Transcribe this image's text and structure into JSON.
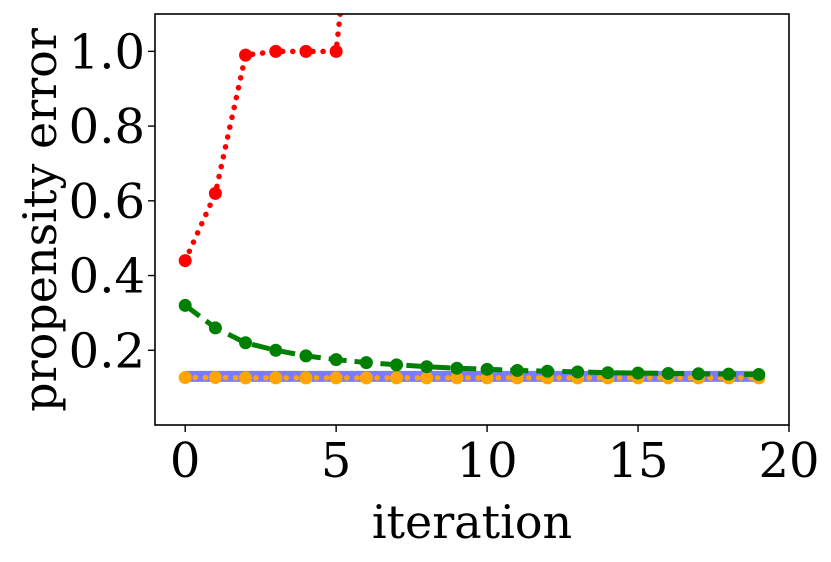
{
  "chart_data": {
    "type": "line",
    "title": "",
    "xlabel": "iteration",
    "ylabel": "propensity error",
    "xlim": [
      -1,
      20
    ],
    "ylim": [
      0.0,
      1.1
    ],
    "xticks": [
      0,
      5,
      10,
      15,
      20
    ],
    "xtick_labels": [
      "0",
      "5",
      "10",
      "15",
      "20"
    ],
    "yticks": [
      0.2,
      0.4,
      0.6,
      0.8,
      1.0
    ],
    "ytick_labels": [
      "0.2",
      "0.4",
      "0.6",
      "0.8",
      "1.0"
    ],
    "grid": false,
    "series": [
      {
        "name": "red-dotted",
        "color": "#ff0000",
        "line_style": "dotted",
        "marker": "circle",
        "x": [
          0,
          1,
          2,
          3,
          4,
          5
        ],
        "y": [
          0.44,
          0.62,
          0.99,
          1.0,
          1.0,
          1.0
        ],
        "continues_beyond": {
          "x": 5.2,
          "y": 1.15
        }
      },
      {
        "name": "green-dashed",
        "color": "#008000",
        "line_style": "dashed",
        "marker": "circle",
        "x": [
          0,
          1,
          2,
          3,
          4,
          5,
          6,
          7,
          8,
          9,
          10,
          11,
          12,
          13,
          14,
          15,
          16,
          17,
          18,
          19
        ],
        "y": [
          0.32,
          0.26,
          0.22,
          0.2,
          0.185,
          0.175,
          0.167,
          0.161,
          0.156,
          0.152,
          0.149,
          0.146,
          0.144,
          0.142,
          0.14,
          0.139,
          0.138,
          0.137,
          0.136,
          0.135
        ]
      },
      {
        "name": "blue-solid",
        "color": "#7b7bff",
        "line_style": "solid",
        "marker": "none",
        "x": [
          0,
          19
        ],
        "y": [
          0.13,
          0.13
        ]
      },
      {
        "name": "orange-dotted",
        "color": "#ffa500",
        "line_style": "dotted",
        "marker": "circle",
        "x": [
          0,
          1,
          2,
          3,
          4,
          5,
          6,
          7,
          8,
          9,
          10,
          11,
          12,
          13,
          14,
          15,
          16,
          17,
          18,
          19
        ],
        "y": [
          0.127,
          0.127,
          0.126,
          0.126,
          0.126,
          0.126,
          0.126,
          0.126,
          0.126,
          0.126,
          0.126,
          0.126,
          0.126,
          0.126,
          0.126,
          0.126,
          0.126,
          0.126,
          0.126,
          0.126
        ]
      }
    ]
  }
}
